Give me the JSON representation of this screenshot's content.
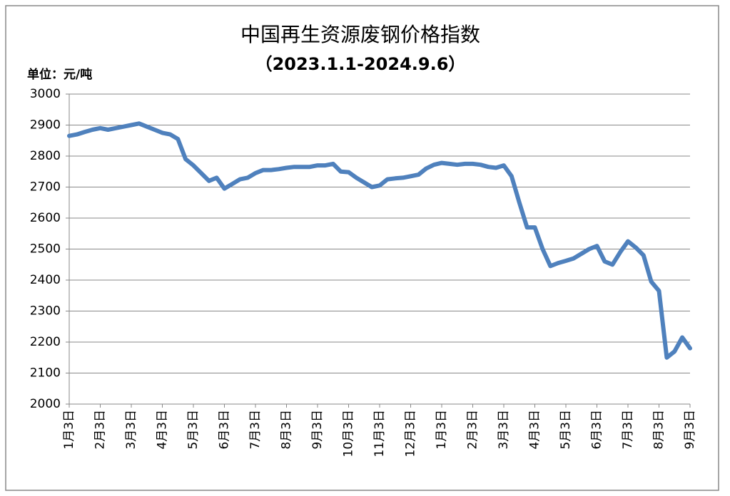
{
  "chart_data": {
    "type": "line",
    "title": "中国再生资源废钢价格指数",
    "subtitle": "（2023.1.1-2024.9.6）",
    "y_label": "单位：元/吨",
    "categories": [
      "1月3日",
      null,
      null,
      null,
      "2月3日",
      null,
      null,
      null,
      "3月3日",
      null,
      null,
      null,
      "4月3日",
      null,
      null,
      null,
      "5月3日",
      null,
      null,
      null,
      "6月3日",
      null,
      null,
      null,
      "7月3日",
      null,
      null,
      null,
      "8月3日",
      null,
      null,
      null,
      "9月3日",
      null,
      null,
      null,
      "10月3日",
      null,
      null,
      null,
      "11月3日",
      null,
      null,
      null,
      "12月3日",
      null,
      null,
      null,
      "1月3日",
      null,
      null,
      null,
      "2月3日",
      null,
      null,
      null,
      "3月3日",
      null,
      null,
      null,
      "4月3日",
      null,
      null,
      null,
      "5月3日",
      null,
      null,
      null,
      "6月3日",
      null,
      null,
      null,
      "7月3日",
      null,
      null,
      null,
      "8月3日",
      null,
      null,
      null,
      "9月3日"
    ],
    "series": [
      {
        "name": "中国再生资源废钢价格指数",
        "color": "#4f81bd",
        "values": [
          2865,
          2870,
          2878,
          2885,
          2890,
          2885,
          2890,
          2895,
          2900,
          2905,
          2895,
          2885,
          2875,
          2870,
          2855,
          2790,
          2770,
          2745,
          2720,
          2730,
          2695,
          2710,
          2725,
          2730,
          2745,
          2755,
          2755,
          2758,
          2762,
          2765,
          2765,
          2765,
          2770,
          2770,
          2775,
          2750,
          2748,
          2730,
          2715,
          2700,
          2705,
          2725,
          2728,
          2730,
          2735,
          2740,
          2760,
          2772,
          2778,
          2775,
          2772,
          2775,
          2775,
          2772,
          2765,
          2762,
          2770,
          2735,
          2650,
          2570,
          2570,
          2500,
          2445,
          2455,
          2462,
          2470,
          2485,
          2500,
          2510,
          2460,
          2450,
          2490,
          2525,
          2505,
          2480,
          2395,
          2365,
          2150,
          2170,
          2215,
          2180
        ]
      }
    ],
    "ylim": [
      2000,
      3000
    ],
    "yticks": [
      2000,
      2100,
      2200,
      2300,
      2400,
      2500,
      2600,
      2700,
      2800,
      2900,
      3000
    ],
    "grid": true
  }
}
